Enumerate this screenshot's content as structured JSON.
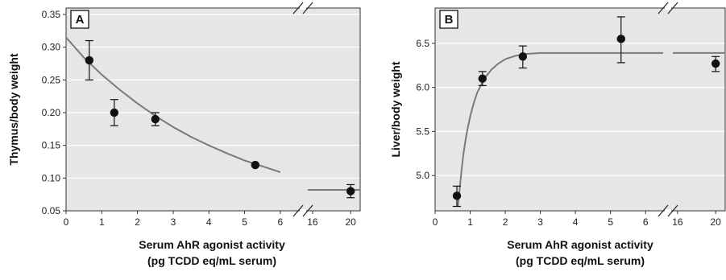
{
  "chart_data": [
    {
      "panel": "A",
      "type": "scatter",
      "ylabel": "Thymus/body weight",
      "xlabel_line1": "Serum AhR agonist activity",
      "xlabel_line2": "(pg TCDD eq/mL serum)",
      "x_ticks_segment1": [
        "0",
        "1",
        "2",
        "3",
        "4",
        "5",
        "6"
      ],
      "x_ticks_segment2": [
        "16",
        "20"
      ],
      "y_ticks": [
        "0.05",
        "0.10",
        "0.15",
        "0.20",
        "0.25",
        "0.30",
        "0.35"
      ],
      "xlim_segment1": [
        0,
        6.5
      ],
      "xlim_segment2": [
        15.5,
        21
      ],
      "ylim": [
        0.05,
        0.35
      ],
      "grid": "horizontal",
      "points": [
        {
          "x": 0.65,
          "y": 0.28,
          "err_low": 0.25,
          "err_high": 0.31
        },
        {
          "x": 1.35,
          "y": 0.2,
          "err_low": 0.18,
          "err_high": 0.22
        },
        {
          "x": 2.5,
          "y": 0.19,
          "err_low": 0.18,
          "err_high": 0.2
        },
        {
          "x": 5.3,
          "y": 0.12
        },
        {
          "x": 20,
          "y": 0.08,
          "err_low": 0.07,
          "err_high": 0.09
        }
      ],
      "fit_curve_segment1": {
        "x": [
          0,
          0.5,
          1,
          1.5,
          2,
          2.5,
          3,
          3.5,
          4,
          4.5,
          5,
          5.5,
          6
        ],
        "y": [
          0.315,
          0.284,
          0.258,
          0.235,
          0.214,
          0.195,
          0.178,
          0.163,
          0.15,
          0.138,
          0.127,
          0.118,
          0.109
        ]
      },
      "fit_curve_segment2": {
        "x": [
          15.5,
          21
        ],
        "y": [
          0.082,
          0.082
        ]
      }
    },
    {
      "panel": "B",
      "type": "scatter",
      "ylabel": "Liver/body weight",
      "xlabel_line1": "Serum AhR agonist activity",
      "xlabel_line2": "(pg TCDD eq/mL serum)",
      "x_ticks_segment1": [
        "0",
        "1",
        "2",
        "3",
        "4",
        "5",
        "6"
      ],
      "x_ticks_segment2": [
        "16",
        "20"
      ],
      "y_ticks": [
        "5.0",
        "5.5",
        "6.0",
        "6.5"
      ],
      "xlim_segment1": [
        0,
        6.5
      ],
      "xlim_segment2": [
        15.5,
        21
      ],
      "ylim": [
        4.6,
        6.9
      ],
      "grid": "horizontal",
      "points": [
        {
          "x": 0.62,
          "y": 4.77,
          "err_low": 4.65,
          "err_high": 4.88
        },
        {
          "x": 1.35,
          "y": 6.1,
          "err_low": 6.02,
          "err_high": 6.18
        },
        {
          "x": 2.5,
          "y": 6.35,
          "err_low": 6.22,
          "err_high": 6.47
        },
        {
          "x": 5.3,
          "y": 6.55,
          "err_low": 6.28,
          "err_high": 6.8
        },
        {
          "x": 20,
          "y": 6.27,
          "err_low": 6.18,
          "err_high": 6.35
        }
      ],
      "fit_curve_segment1": {
        "x": [
          0.65,
          0.7,
          0.75,
          0.8,
          0.85,
          0.9,
          0.95,
          1.0,
          1.1,
          1.2,
          1.4,
          1.6,
          1.8,
          2.0,
          2.3,
          2.6,
          3.0,
          4.0,
          5.0,
          6.0,
          6.5
        ],
        "y": [
          4.65,
          4.85,
          5.05,
          5.22,
          5.36,
          5.48,
          5.58,
          5.67,
          5.82,
          5.94,
          6.1,
          6.2,
          6.27,
          6.32,
          6.36,
          6.38,
          6.39,
          6.39,
          6.39,
          6.39,
          6.39
        ]
      },
      "fit_curve_segment2": {
        "x": [
          15.5,
          21
        ],
        "y": [
          6.39,
          6.39
        ]
      }
    }
  ]
}
